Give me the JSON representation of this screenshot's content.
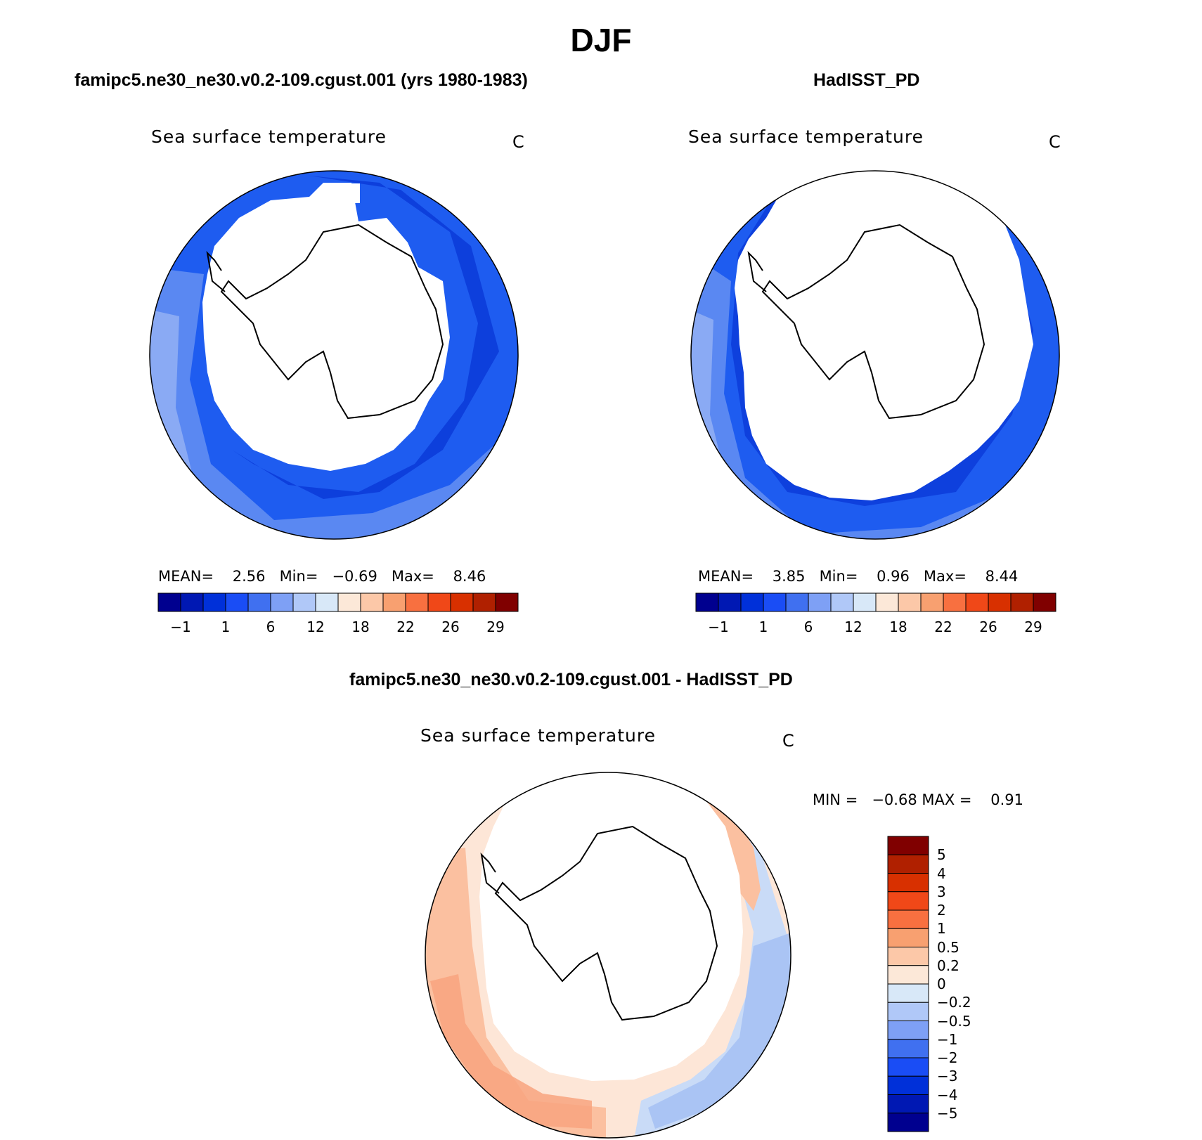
{
  "figure": {
    "title": "DJF"
  },
  "panels": {
    "model": {
      "title": "famipc5.ne30_ne30.v0.2-109.cgust.001 (yrs 1980-1983)",
      "variable": "Sea surface temperature",
      "units": "C",
      "stats": {
        "mean_label": "MEAN=",
        "mean": "2.56",
        "min_label": "Min=",
        "min": "−0.69",
        "max_label": "Max=",
        "max": "8.46"
      }
    },
    "obs": {
      "title": "HadISST_PD",
      "variable": "Sea surface temperature",
      "units": "C",
      "stats": {
        "mean_label": "MEAN=",
        "mean": "3.85",
        "min_label": "Min=",
        "min": "0.96",
        "max_label": "Max=",
        "max": "8.44"
      }
    },
    "diff": {
      "title": "famipc5.ne30_ne30.v0.2-109.cgust.001 - HadISST_PD",
      "variable": "Sea surface temperature",
      "units": "C",
      "stats": {
        "min_label": "MIN =",
        "min": "−0.68",
        "max_label": "MAX =",
        "max": "0.91"
      }
    }
  },
  "colorbars": {
    "sst": {
      "colors": [
        "#00008f",
        "#0018b3",
        "#0030d9",
        "#1a4df5",
        "#4070f0",
        "#7ea0f5",
        "#b0c8f8",
        "#d8e8f8",
        "#fce8d8",
        "#fcc8a8",
        "#f8a070",
        "#f87040",
        "#f04818",
        "#d83000",
        "#b02000",
        "#800000"
      ],
      "ticks": [
        "−1",
        "1",
        "6",
        "12",
        "18",
        "22",
        "26",
        "29"
      ]
    },
    "diff": {
      "colors": [
        "#800000",
        "#b02000",
        "#d83000",
        "#f04818",
        "#f87040",
        "#f8a070",
        "#fcc8a8",
        "#fce8d8",
        "#d8e8f8",
        "#b0c8f8",
        "#7ea0f5",
        "#4070f0",
        "#1a4df5",
        "#0030d9",
        "#0018b3",
        "#00008f"
      ],
      "ticks": [
        "5",
        "4",
        "3",
        "2",
        "1",
        "0.5",
        "0.2",
        "0",
        "−0.2",
        "−0.5",
        "−1",
        "−2",
        "−3",
        "−4",
        "−5"
      ]
    }
  },
  "map_style": {
    "ocean_colors": {
      "cold": "#0a3ad8",
      "mid": "#1e5cf0",
      "warm": "#5a88f2",
      "pale": "#8aaaf4"
    },
    "diff_colors": {
      "warm": "#fbc0a0",
      "warmer": "#f8a37f",
      "neutral": "#fde6d7",
      "cool": "#c9dbf7",
      "cooler": "#9fbcf3"
    },
    "land_color": "#ffffff",
    "coastline_color": "#000000"
  }
}
